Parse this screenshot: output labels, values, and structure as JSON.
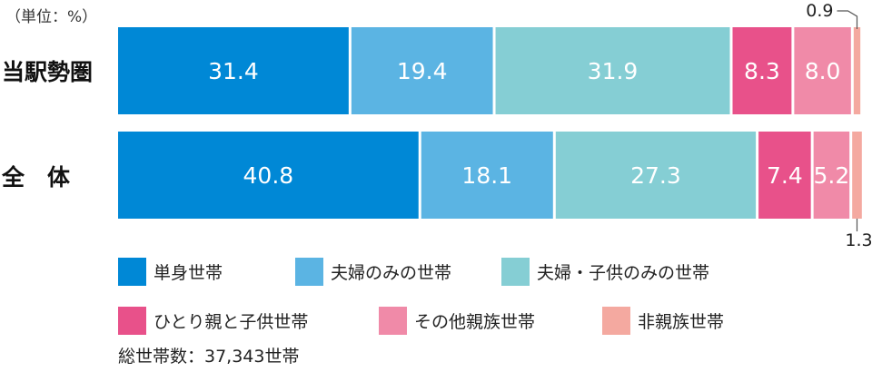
{
  "chart_data": {
    "type": "bar",
    "orientation": "horizontal",
    "stacked": true,
    "unit_note": "（単位：%）",
    "categories": [
      "当駅勢圏",
      "全　体"
    ],
    "series": [
      {
        "name": "単身世帯",
        "color": "#0088d6",
        "values": [
          31.4,
          40.8
        ]
      },
      {
        "name": "夫婦のみの世帯",
        "color": "#5bb4e3",
        "values": [
          19.4,
          18.1
        ]
      },
      {
        "name": "夫婦・子供のみの世帯",
        "color": "#85ced4",
        "values": [
          31.9,
          27.3
        ]
      },
      {
        "name": "ひとり親と子供世帯",
        "color": "#e8518a",
        "values": [
          8.3,
          7.4
        ]
      },
      {
        "name": "その他親族世帯",
        "color": "#f08aa8",
        "values": [
          8.0,
          5.2
        ]
      },
      {
        "name": "非親族世帯",
        "color": "#f4a9a0",
        "values": [
          0.9,
          1.3
        ]
      }
    ],
    "data_labels": [
      [
        "31.4",
        "19.4",
        "31.9",
        "8.3",
        "8.0",
        "0.9"
      ],
      [
        "40.8",
        "18.1",
        "27.3",
        "7.4",
        "5.2",
        "1.3"
      ]
    ],
    "xlim": [
      0,
      100
    ],
    "grid": false,
    "legend_position": "bottom"
  },
  "total_text": "総世帯数：37,343世帯"
}
